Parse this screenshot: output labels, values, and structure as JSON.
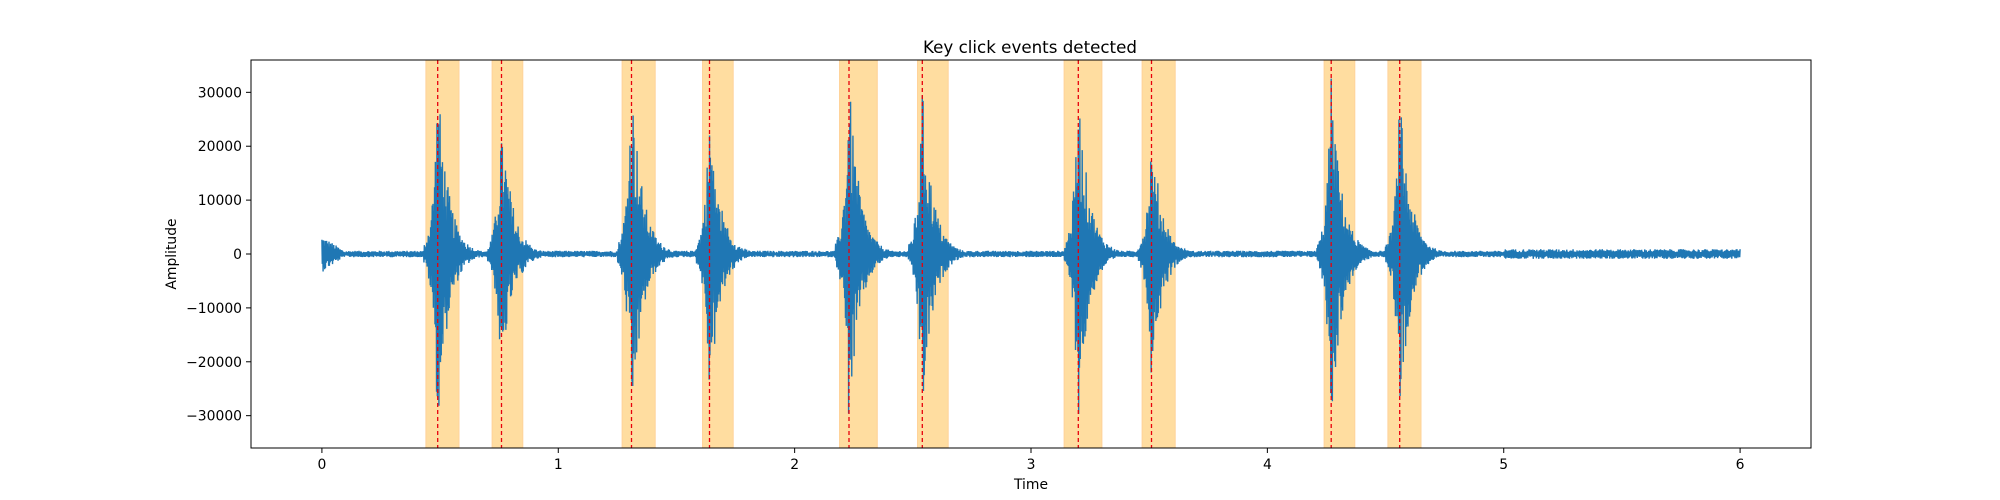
{
  "chart_data": {
    "type": "line",
    "title": "Key click events detected",
    "xlabel": "Time",
    "ylabel": "Amplitude",
    "xlim": [
      -0.3,
      6.3
    ],
    "ylim": [
      -36000,
      36000
    ],
    "xticks": [
      0,
      1,
      2,
      3,
      4,
      5,
      6
    ],
    "yticks": [
      -30000,
      -20000,
      -10000,
      0,
      10000,
      20000,
      30000
    ],
    "grid": false,
    "legend": "none",
    "colors": {
      "signal": "#1f77b4",
      "region": "#ffdda0",
      "region_edge": "#ffd39a",
      "marker": "#e8000b"
    },
    "signal": {
      "x_start": 0,
      "x_end": 6,
      "baseline_noise": 600
    },
    "events": [
      {
        "time": 0.49,
        "region": [
          0.44,
          0.58
        ],
        "peak_pos": 33000,
        "peak_neg": -33000
      },
      {
        "time": 0.76,
        "region": [
          0.72,
          0.85
        ],
        "peak_pos": 27000,
        "peak_neg": -22000
      },
      {
        "time": 1.31,
        "region": [
          1.27,
          1.41
        ],
        "peak_pos": 34000,
        "peak_neg": -33000
      },
      {
        "time": 1.64,
        "region": [
          1.61,
          1.74
        ],
        "peak_pos": 23500,
        "peak_neg": -28000
      },
      {
        "time": 2.23,
        "region": [
          2.19,
          2.35
        ],
        "peak_pos": 33000,
        "peak_neg": -33000
      },
      {
        "time": 2.54,
        "region": [
          2.52,
          2.65
        ],
        "peak_pos": 31000,
        "peak_neg": -31000
      },
      {
        "time": 3.2,
        "region": [
          3.14,
          3.3
        ],
        "peak_pos": 31000,
        "peak_neg": -32000
      },
      {
        "time": 3.51,
        "region": [
          3.47,
          3.61
        ],
        "peak_pos": 20000,
        "peak_neg": -24000
      },
      {
        "time": 4.27,
        "region": [
          4.24,
          4.37
        ],
        "peak_pos": 32500,
        "peak_neg": -33000
      },
      {
        "time": 4.56,
        "region": [
          4.51,
          4.65
        ],
        "peak_pos": 30000,
        "peak_neg": -30000
      }
    ]
  }
}
